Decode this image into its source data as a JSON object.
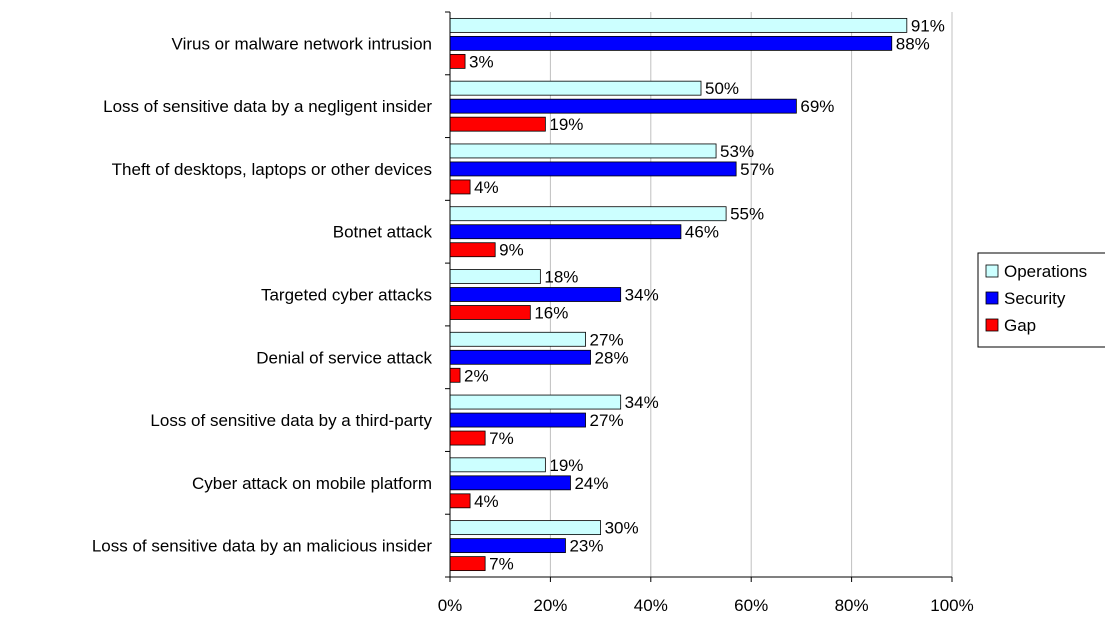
{
  "chart_data": {
    "type": "bar",
    "orientation": "horizontal",
    "categories": [
      "Virus or malware network intrusion",
      "Loss of sensitive data by a negligent insider",
      "Theft of desktops, laptops or other devices",
      "Botnet attack",
      "Targeted cyber attacks",
      "Denial of service attack",
      "Loss of sensitive data by a third-party",
      "Cyber attack on mobile platform",
      "Loss of sensitive data by an malicious insider"
    ],
    "series": [
      {
        "name": "Operations",
        "color": "#CCFFFF",
        "values": [
          91,
          50,
          53,
          55,
          18,
          27,
          34,
          19,
          30
        ]
      },
      {
        "name": "Security",
        "color": "#0000FF",
        "values": [
          88,
          69,
          57,
          46,
          34,
          28,
          27,
          24,
          23
        ]
      },
      {
        "name": "Gap",
        "color": "#FF0000",
        "values": [
          3,
          19,
          4,
          9,
          16,
          2,
          7,
          4,
          7
        ]
      }
    ],
    "value_suffix": "%",
    "xlim": [
      0,
      100
    ],
    "xticks": [
      "0%",
      "20%",
      "40%",
      "60%",
      "80%",
      "100%"
    ],
    "grid": "vertical",
    "legend": "right",
    "title": "",
    "xlabel": "",
    "ylabel": ""
  }
}
